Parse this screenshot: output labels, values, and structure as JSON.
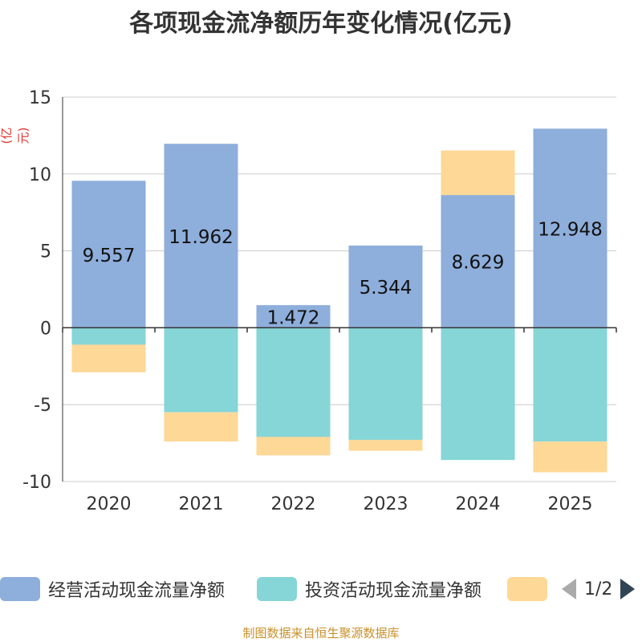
{
  "title": "各项现金流净额历年变化情况(亿元)",
  "unit_label": "(亿元)",
  "source": "制图数据来自恒生聚源数据库",
  "legend": {
    "items": [
      {
        "label": "经营活动现金流量净额",
        "color": "#8eaedb"
      },
      {
        "label": "投资活动现金流量净额",
        "color": "#86d5d7"
      },
      {
        "label": "",
        "color": "#fed897"
      }
    ],
    "page": "1/2"
  },
  "chart_data": {
    "type": "bar",
    "stacked": true,
    "categories": [
      "2020",
      "2021",
      "2022",
      "2023",
      "2024",
      "2025"
    ],
    "series": [
      {
        "name": "经营活动现金流量净额",
        "color": "#8eaedb",
        "values": [
          9.557,
          11.962,
          1.472,
          5.344,
          8.629,
          12.948
        ],
        "labels": [
          "9.557",
          "11.962",
          "1.472",
          "5.344",
          "8.629",
          "12.948"
        ]
      },
      {
        "name": "投资活动现金流量净额",
        "color": "#86d5d7",
        "values": [
          -1.1,
          -5.5,
          -7.1,
          -7.3,
          -8.6,
          -7.4
        ]
      },
      {
        "name": "",
        "color": "#fed897",
        "values": [
          -1.8,
          -1.9,
          -1.2,
          -0.7,
          2.9,
          -2.0
        ]
      }
    ],
    "ylim": [
      -10,
      15
    ],
    "yticks": [
      -10,
      -5,
      0,
      5,
      10,
      15
    ],
    "ytick_labels": [
      "-10",
      "-5",
      "0",
      "5",
      "10",
      "15"
    ],
    "grid": true
  }
}
